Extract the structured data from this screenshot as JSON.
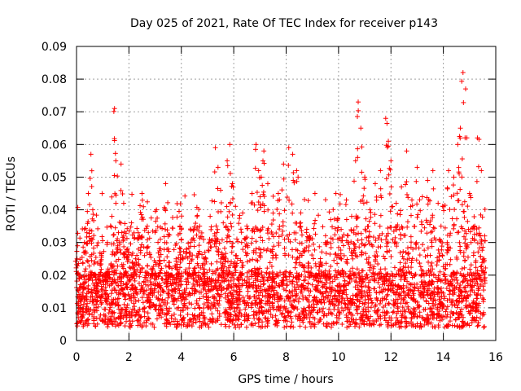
{
  "chart_data": {
    "type": "scatter",
    "title": "Day 025 of 2021, Rate Of TEC Index for receiver p143",
    "xlabel": "GPS time / hours",
    "ylabel": "ROTI / TECUs",
    "xlim": [
      0,
      16
    ],
    "ylim": [
      0,
      0.09
    ],
    "x_ticks": [
      0,
      2,
      4,
      6,
      8,
      10,
      12,
      14,
      16
    ],
    "y_ticks": [
      0,
      0.01,
      0.02,
      0.03,
      0.04,
      0.05,
      0.06,
      0.07,
      0.08,
      0.09
    ],
    "x_tick_labels": [
      "0",
      "2",
      "4",
      "6",
      "8",
      "10",
      "12",
      "14",
      "16"
    ],
    "y_tick_labels": [
      "0",
      "0.01",
      "0.02",
      "0.03",
      "0.04",
      "0.05",
      "0.06",
      "0.07",
      "0.08",
      "0.09"
    ],
    "grid": true,
    "marker": "+",
    "color": "#ff0000",
    "series": [
      {
        "name": "ROTI",
        "description_points": "dense scatter of ROTI values over 0-15.6 h; bulk 0.005-0.02 TECU/min, frequent excursions to 0.03-0.06, peaks near 0.071 at 1.45 h, 0.073 at 10.8 h, 0.068 at 11.9 h, 0.082 at 14.75 h",
        "x": [
          0.02,
          0.15,
          0.3,
          0.45,
          0.55,
          0.62,
          0.7,
          0.8,
          0.95,
          1.1,
          1.2,
          1.35,
          1.45,
          1.5,
          1.6,
          1.7,
          1.8,
          1.95,
          2.1,
          2.25,
          2.4,
          2.5,
          2.7,
          2.9,
          3.05,
          3.2,
          3.4,
          3.5,
          3.6,
          3.8,
          4.0,
          4.2,
          4.35,
          4.5,
          4.7,
          4.9,
          5.1,
          5.3,
          5.4,
          5.5,
          5.6,
          5.75,
          5.85,
          5.95,
          6.1,
          6.3,
          6.5,
          6.7,
          6.85,
          6.95,
          7.05,
          7.15,
          7.3,
          7.5,
          7.7,
          7.9,
          8.1,
          8.25,
          8.4,
          8.55,
          8.7,
          8.9,
          9.1,
          9.3,
          9.5,
          9.7,
          9.9,
          10.1,
          10.3,
          10.5,
          10.65,
          10.75,
          10.85,
          11.0,
          11.2,
          11.4,
          11.6,
          11.8,
          11.9,
          12.0,
          12.2,
          12.4,
          12.6,
          12.8,
          13.0,
          13.2,
          13.4,
          13.6,
          13.8,
          14.0,
          14.2,
          14.4,
          14.55,
          14.65,
          14.75,
          14.85,
          15.0,
          15.2,
          15.3,
          15.45,
          15.55
        ],
        "y": [
          0.025,
          0.012,
          0.03,
          0.045,
          0.057,
          0.04,
          0.02,
          0.015,
          0.026,
          0.018,
          0.021,
          0.038,
          0.071,
          0.055,
          0.033,
          0.054,
          0.042,
          0.028,
          0.036,
          0.025,
          0.032,
          0.045,
          0.035,
          0.022,
          0.04,
          0.031,
          0.048,
          0.028,
          0.02,
          0.025,
          0.034,
          0.028,
          0.03,
          0.022,
          0.035,
          0.027,
          0.038,
          0.059,
          0.053,
          0.046,
          0.036,
          0.055,
          0.06,
          0.048,
          0.026,
          0.03,
          0.035,
          0.045,
          0.06,
          0.052,
          0.05,
          0.058,
          0.048,
          0.039,
          0.045,
          0.054,
          0.059,
          0.057,
          0.052,
          0.036,
          0.028,
          0.032,
          0.045,
          0.024,
          0.03,
          0.037,
          0.045,
          0.034,
          0.043,
          0.038,
          0.055,
          0.073,
          0.065,
          0.05,
          0.04,
          0.048,
          0.052,
          0.068,
          0.061,
          0.055,
          0.042,
          0.047,
          0.058,
          0.043,
          0.053,
          0.044,
          0.049,
          0.052,
          0.042,
          0.041,
          0.052,
          0.05,
          0.06,
          0.065,
          0.082,
          0.077,
          0.045,
          0.035,
          0.062,
          0.052,
          0.025
        ]
      }
    ]
  }
}
